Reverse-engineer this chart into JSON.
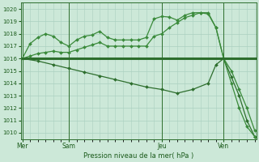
{
  "title": "Pression niveau de la mer( hPa )",
  "bg_color": "#cce8d8",
  "grid_color": "#aad0c0",
  "ylim": [
    1009.5,
    1020.5
  ],
  "yticks": [
    1010,
    1011,
    1012,
    1013,
    1014,
    1015,
    1016,
    1017,
    1018,
    1019,
    1020
  ],
  "xlim": [
    -0.2,
    30.2
  ],
  "day_labels": [
    "Mer",
    "Sam",
    "Jeu",
    "Ven"
  ],
  "day_positions": [
    0,
    6,
    18,
    26
  ],
  "vline_positions": [
    0,
    6,
    18,
    26
  ],
  "line_thick": {
    "x": [
      0,
      5,
      10,
      15,
      18,
      26,
      30
    ],
    "y": [
      1016.0,
      1016.0,
      1016.0,
      1016.0,
      1016.0,
      1016.0,
      1016.0
    ],
    "color": "#2d6e2d",
    "lw": 2.2,
    "marker": "D",
    "ms": 1.5
  },
  "line_upper": {
    "x": [
      0,
      1,
      2,
      3,
      4,
      5,
      6,
      7,
      8,
      9,
      10,
      11,
      12,
      13,
      14,
      15,
      16,
      17,
      18,
      19,
      20,
      21,
      22,
      23,
      24,
      25,
      26,
      27,
      28,
      29,
      30
    ],
    "y": [
      1016.0,
      1017.2,
      1017.7,
      1018.0,
      1017.8,
      1017.3,
      1017.0,
      1017.5,
      1017.8,
      1017.9,
      1018.2,
      1017.7,
      1017.5,
      1017.5,
      1017.5,
      1017.5,
      1017.7,
      1019.2,
      1019.4,
      1019.35,
      1019.1,
      1019.5,
      1019.7,
      1019.7,
      1019.6,
      1018.5,
      1016.0,
      1015.0,
      1013.5,
      1012.0,
      1010.2
    ],
    "color": "#3a8a3a",
    "lw": 0.9,
    "marker": "D",
    "ms": 2.0
  },
  "line_lower": {
    "x": [
      0,
      2,
      4,
      6,
      8,
      10,
      12,
      14,
      16,
      18,
      20,
      22,
      24,
      25,
      26,
      27,
      28,
      29,
      30
    ],
    "y": [
      1016.0,
      1015.8,
      1015.5,
      1015.2,
      1014.9,
      1014.6,
      1014.3,
      1014.0,
      1013.7,
      1013.5,
      1013.2,
      1013.5,
      1014.0,
      1015.5,
      1016.0,
      1014.5,
      1013.0,
      1011.0,
      1009.7
    ],
    "color": "#2d6e2d",
    "lw": 0.9,
    "marker": "D",
    "ms": 2.0
  },
  "line_mid": {
    "x": [
      0,
      1,
      2,
      3,
      4,
      5,
      6,
      7,
      8,
      9,
      10,
      11,
      12,
      13,
      14,
      15,
      16,
      17,
      18,
      19,
      20,
      21,
      22,
      23,
      24,
      25,
      26,
      27,
      28,
      29,
      30
    ],
    "y": [
      1016.0,
      1016.2,
      1016.4,
      1016.5,
      1016.6,
      1016.5,
      1016.5,
      1016.7,
      1016.9,
      1017.1,
      1017.3,
      1017.0,
      1017.0,
      1017.0,
      1017.0,
      1017.0,
      1017.0,
      1017.8,
      1018.0,
      1018.5,
      1018.9,
      1019.3,
      1019.5,
      1019.7,
      1019.7,
      1018.5,
      1016.0,
      1014.0,
      1012.0,
      1010.5,
      1009.7
    ],
    "color": "#3a8a3a",
    "lw": 0.9,
    "marker": "D",
    "ms": 2.0
  }
}
